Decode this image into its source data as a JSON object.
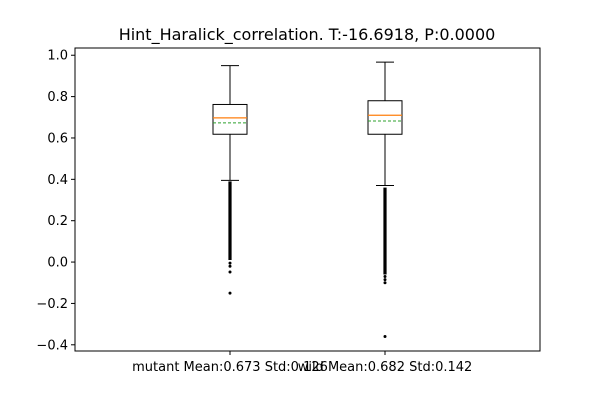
{
  "chart_data": {
    "type": "box",
    "title": "Hint_Haralick_correlation. T:-16.6918, P:0.0000",
    "xlabel": "",
    "ylabel": "",
    "ylim": [
      -0.43,
      1.035
    ],
    "yticks": [
      1.0,
      0.8,
      0.6,
      0.4,
      0.2,
      0.0,
      -0.2,
      -0.4
    ],
    "ytick_labels": [
      "1.0",
      "0.8",
      "0.6",
      "0.4",
      "0.2",
      "0.0",
      "−0.2",
      "−0.4"
    ],
    "categories": [
      "mutant Mean:0.673 Std:0.126",
      "wild Mean:0.682 Std:0.142"
    ],
    "grid": false,
    "series": [
      {
        "whisker_low": 0.395,
        "q1": 0.618,
        "median": 0.697,
        "mean": 0.673,
        "q3": 0.762,
        "whisker_high": 0.95,
        "outliers": [
          -0.005,
          -0.02,
          -0.048,
          -0.15
        ],
        "outlier_dense_range": [
          0.01,
          0.39
        ]
      },
      {
        "whisker_low": 0.37,
        "q1": 0.618,
        "median": 0.71,
        "mean": 0.682,
        "q3": 0.78,
        "whisker_high": 0.967,
        "outliers": [
          -0.07,
          -0.085,
          -0.1,
          -0.36
        ],
        "outlier_dense_range": [
          -0.06,
          0.36
        ]
      }
    ],
    "colors": {
      "box": "#000000",
      "median": "#ff7f0e",
      "mean": "#2ca02c",
      "outlier": "#000000"
    }
  }
}
